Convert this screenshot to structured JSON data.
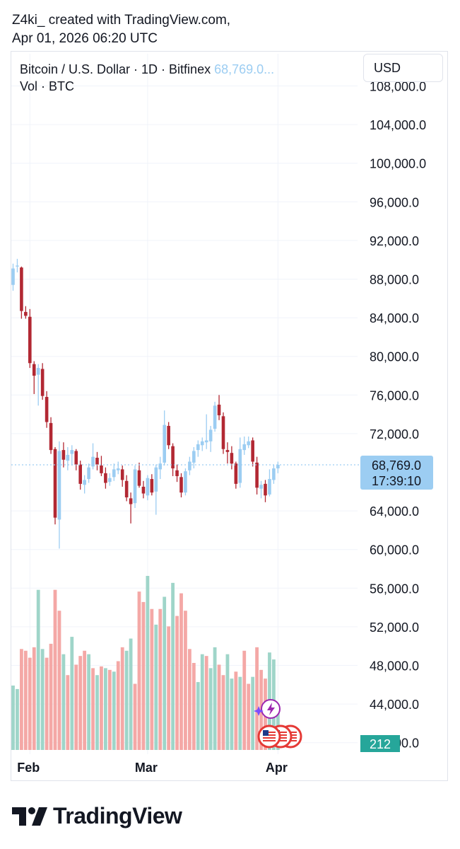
{
  "caption": {
    "line1": "Z4ki_ created with TradingView.com,",
    "line2": "Apr 01, 2026 06:20 UTC"
  },
  "legend": {
    "symbol": "Bitcoin / U.S. Dollar · 1D · Bitfinex",
    "price": "68,769.0...",
    "volume": "Vol · BTC"
  },
  "currency_button": "USD",
  "brand": "TradingView",
  "colors": {
    "up_candle": "#9ccdf2",
    "down_candle": "#b22833",
    "up_volume": "#9fd5c9",
    "down_volume": "#f4a8a6",
    "price_label_bg": "#9ccdf2",
    "volume_label_bg": "#26a69a",
    "grid": "#f0f3fa"
  },
  "chart_data": {
    "type": "candlestick",
    "y_ticks": [
      "108,000.0",
      "104,000.0",
      "100,000.0",
      "96,000.0",
      "92,000.0",
      "88,000.0",
      "84,000.0",
      "80,000.0",
      "76,000.0",
      "72,000.0",
      "64,000.0",
      "60,000.0",
      "56,000.0",
      "52,000.0",
      "48,000.0",
      "44,000.0",
      "40,000.0"
    ],
    "x_ticks": [
      {
        "label": "Feb",
        "index": 4
      },
      {
        "label": "Mar",
        "index": 32
      },
      {
        "label": "Apr",
        "index": 63
      }
    ],
    "current_price": {
      "label": "68,769.0",
      "countdown": "17:39:10",
      "value": 68769
    },
    "current_volume": {
      "label": "212"
    },
    "ylim": [
      38500,
      109200
    ],
    "candles": [
      {
        "o": 87400,
        "h": 89600,
        "l": 86800,
        "c": 89100
      },
      {
        "o": 89300,
        "h": 90100,
        "l": 88700,
        "c": 89400
      },
      {
        "o": 89200,
        "h": 89300,
        "l": 83900,
        "c": 84700
      },
      {
        "o": 84600,
        "h": 85200,
        "l": 83900,
        "c": 84200
      },
      {
        "o": 84100,
        "h": 84900,
        "l": 78800,
        "c": 79300
      },
      {
        "o": 79200,
        "h": 79500,
        "l": 76100,
        "c": 78000
      },
      {
        "o": 78100,
        "h": 79200,
        "l": 74900,
        "c": 78800
      },
      {
        "o": 78700,
        "h": 79300,
        "l": 75500,
        "c": 75900
      },
      {
        "o": 75800,
        "h": 76400,
        "l": 72600,
        "c": 73200
      },
      {
        "o": 73100,
        "h": 73700,
        "l": 69900,
        "c": 70300
      },
      {
        "o": 70400,
        "h": 70600,
        "l": 62600,
        "c": 63300
      },
      {
        "o": 63100,
        "h": 71200,
        "l": 60100,
        "c": 70200
      },
      {
        "o": 70300,
        "h": 71100,
        "l": 68500,
        "c": 69300
      },
      {
        "o": 69200,
        "h": 70600,
        "l": 68200,
        "c": 69800
      },
      {
        "o": 69900,
        "h": 70800,
        "l": 68700,
        "c": 70300
      },
      {
        "o": 70200,
        "h": 70400,
        "l": 68200,
        "c": 68800
      },
      {
        "o": 68800,
        "h": 69200,
        "l": 66200,
        "c": 66800
      },
      {
        "o": 66700,
        "h": 67700,
        "l": 65800,
        "c": 67200
      },
      {
        "o": 67300,
        "h": 68900,
        "l": 66900,
        "c": 68500
      },
      {
        "o": 68600,
        "h": 71000,
        "l": 68300,
        "c": 69600
      },
      {
        "o": 69500,
        "h": 70100,
        "l": 68200,
        "c": 68800
      },
      {
        "o": 68700,
        "h": 69700,
        "l": 67600,
        "c": 67900
      },
      {
        "o": 67900,
        "h": 68500,
        "l": 66300,
        "c": 66900
      },
      {
        "o": 67000,
        "h": 67900,
        "l": 66600,
        "c": 67400
      },
      {
        "o": 67500,
        "h": 68900,
        "l": 67100,
        "c": 68300
      },
      {
        "o": 68200,
        "h": 69100,
        "l": 67800,
        "c": 68400
      },
      {
        "o": 68300,
        "h": 68700,
        "l": 66500,
        "c": 67200
      },
      {
        "o": 67100,
        "h": 67700,
        "l": 65000,
        "c": 65400
      },
      {
        "o": 65300,
        "h": 65900,
        "l": 62700,
        "c": 64700
      },
      {
        "o": 64800,
        "h": 68700,
        "l": 64300,
        "c": 68300
      },
      {
        "o": 68200,
        "h": 69000,
        "l": 66400,
        "c": 66600
      },
      {
        "o": 66500,
        "h": 67100,
        "l": 65300,
        "c": 65800
      },
      {
        "o": 65600,
        "h": 67700,
        "l": 65100,
        "c": 67400
      },
      {
        "o": 67300,
        "h": 67800,
        "l": 65600,
        "c": 65900
      },
      {
        "o": 66000,
        "h": 68800,
        "l": 63600,
        "c": 68500
      },
      {
        "o": 68300,
        "h": 69600,
        "l": 67300,
        "c": 68900
      },
      {
        "o": 69000,
        "h": 74400,
        "l": 68700,
        "c": 72900
      },
      {
        "o": 72800,
        "h": 73200,
        "l": 70400,
        "c": 70800
      },
      {
        "o": 70700,
        "h": 71000,
        "l": 67600,
        "c": 68400
      },
      {
        "o": 68200,
        "h": 68800,
        "l": 67000,
        "c": 67600
      },
      {
        "o": 67500,
        "h": 67900,
        "l": 65400,
        "c": 65900
      },
      {
        "o": 65900,
        "h": 68400,
        "l": 65600,
        "c": 68100
      },
      {
        "o": 68200,
        "h": 69600,
        "l": 67700,
        "c": 69100
      },
      {
        "o": 69000,
        "h": 70600,
        "l": 68400,
        "c": 70200
      },
      {
        "o": 70300,
        "h": 71300,
        "l": 69600,
        "c": 70900
      },
      {
        "o": 70800,
        "h": 71600,
        "l": 70200,
        "c": 71200
      },
      {
        "o": 71100,
        "h": 74000,
        "l": 70400,
        "c": 71300
      },
      {
        "o": 71200,
        "h": 72800,
        "l": 70100,
        "c": 72400
      },
      {
        "o": 72500,
        "h": 75300,
        "l": 72200,
        "c": 74900
      },
      {
        "o": 75000,
        "h": 76000,
        "l": 73400,
        "c": 73900
      },
      {
        "o": 73800,
        "h": 74200,
        "l": 69900,
        "c": 70400
      },
      {
        "o": 70300,
        "h": 71100,
        "l": 68900,
        "c": 70100
      },
      {
        "o": 70000,
        "h": 70700,
        "l": 68300,
        "c": 68900
      },
      {
        "o": 68900,
        "h": 69100,
        "l": 66300,
        "c": 66800
      },
      {
        "o": 66900,
        "h": 71600,
        "l": 66400,
        "c": 70400
      },
      {
        "o": 70300,
        "h": 71700,
        "l": 69800,
        "c": 70900
      },
      {
        "o": 70800,
        "h": 71700,
        "l": 70500,
        "c": 71200
      },
      {
        "o": 71300,
        "h": 71600,
        "l": 68600,
        "c": 69100
      },
      {
        "o": 69000,
        "h": 69600,
        "l": 65700,
        "c": 66400
      },
      {
        "o": 66300,
        "h": 67100,
        "l": 65300,
        "c": 66700
      },
      {
        "o": 66800,
        "h": 67200,
        "l": 64900,
        "c": 65600
      },
      {
        "o": 65700,
        "h": 68300,
        "l": 65500,
        "c": 67300
      },
      {
        "o": 67200,
        "h": 68800,
        "l": 66800,
        "c": 68400
      },
      {
        "o": 68400,
        "h": 69100,
        "l": 67900,
        "c": 68769
      }
    ],
    "volume_bars": [
      {
        "v": 0.37,
        "up": true
      },
      {
        "v": 0.35,
        "up": true
      },
      {
        "v": 0.58,
        "up": false
      },
      {
        "v": 0.57,
        "up": false
      },
      {
        "v": 0.53,
        "up": false
      },
      {
        "v": 0.59,
        "up": false
      },
      {
        "v": 0.92,
        "up": true
      },
      {
        "v": 0.58,
        "up": true
      },
      {
        "v": 0.53,
        "up": false
      },
      {
        "v": 0.61,
        "up": false
      },
      {
        "v": 0.92,
        "up": false
      },
      {
        "v": 0.8,
        "up": false
      },
      {
        "v": 0.55,
        "up": true
      },
      {
        "v": 0.43,
        "up": false
      },
      {
        "v": 0.65,
        "up": true
      },
      {
        "v": 0.49,
        "up": false
      },
      {
        "v": 0.54,
        "up": false
      },
      {
        "v": 0.57,
        "up": false
      },
      {
        "v": 0.55,
        "up": true
      },
      {
        "v": 0.47,
        "up": false
      },
      {
        "v": 0.43,
        "up": true
      },
      {
        "v": 0.48,
        "up": false
      },
      {
        "v": 0.47,
        "up": true
      },
      {
        "v": 0.46,
        "up": false
      },
      {
        "v": 0.45,
        "up": true
      },
      {
        "v": 0.51,
        "up": false
      },
      {
        "v": 0.59,
        "up": false
      },
      {
        "v": 0.57,
        "up": true
      },
      {
        "v": 0.64,
        "up": true
      },
      {
        "v": 0.38,
        "up": false
      },
      {
        "v": 0.91,
        "up": false
      },
      {
        "v": 0.85,
        "up": false
      },
      {
        "v": 1.0,
        "up": true
      },
      {
        "v": 0.81,
        "up": false
      },
      {
        "v": 0.72,
        "up": true
      },
      {
        "v": 0.81,
        "up": false
      },
      {
        "v": 0.88,
        "up": true
      },
      {
        "v": 0.71,
        "up": false
      },
      {
        "v": 0.96,
        "up": true
      },
      {
        "v": 0.77,
        "up": false
      },
      {
        "v": 0.9,
        "up": false
      },
      {
        "v": 0.8,
        "up": false
      },
      {
        "v": 0.58,
        "up": false
      },
      {
        "v": 0.5,
        "up": false
      },
      {
        "v": 0.39,
        "up": true
      },
      {
        "v": 0.55,
        "up": true
      },
      {
        "v": 0.54,
        "up": false
      },
      {
        "v": 0.47,
        "up": true
      },
      {
        "v": 0.59,
        "up": true
      },
      {
        "v": 0.49,
        "up": false
      },
      {
        "v": 0.43,
        "up": false
      },
      {
        "v": 0.55,
        "up": true
      },
      {
        "v": 0.41,
        "up": true
      },
      {
        "v": 0.45,
        "up": false
      },
      {
        "v": 0.42,
        "up": true
      },
      {
        "v": 0.57,
        "up": false
      },
      {
        "v": 0.38,
        "up": false
      },
      {
        "v": 0.42,
        "up": true
      },
      {
        "v": 0.59,
        "up": false
      },
      {
        "v": 0.46,
        "up": false
      },
      {
        "v": 0.41,
        "up": false
      },
      {
        "v": 0.56,
        "up": true
      },
      {
        "v": 0.52,
        "up": true
      },
      {
        "v": 0.26,
        "up": true
      }
    ]
  }
}
